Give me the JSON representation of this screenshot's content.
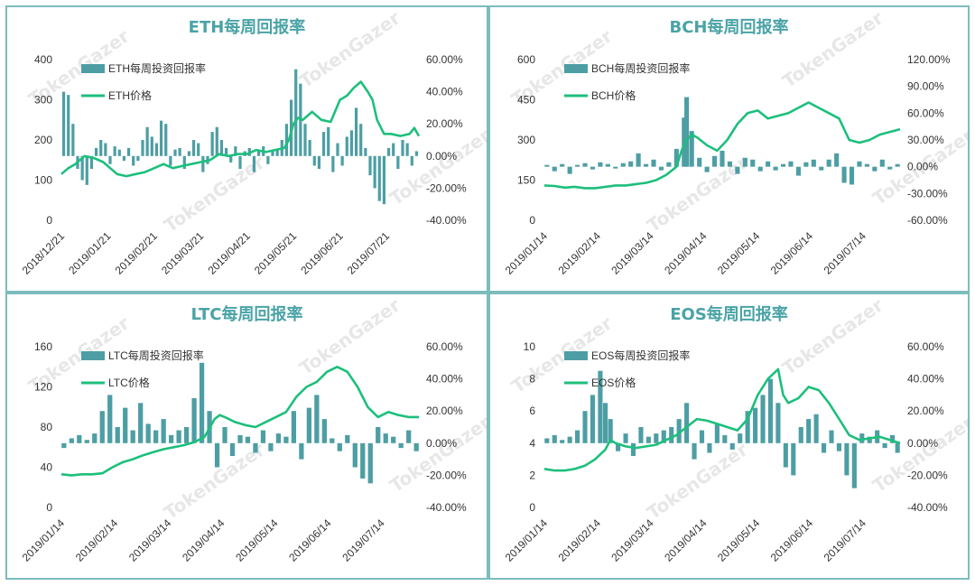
{
  "watermark": "TokenGazer",
  "colors": {
    "bar": "#4d9ea4",
    "line": "#1dbf7c",
    "title": "#4aa3a6",
    "border": "#7dbcbc"
  },
  "chart_data": [
    {
      "type": "bar+line",
      "title": "ETH每周回报率",
      "legend": [
        "ETH每周投资回报率",
        "ETH价格"
      ],
      "x_labels": [
        "2018/12/21",
        "2019/01/21",
        "2019/02/21",
        "2019/03/21",
        "2019/04/21",
        "2019/05/21",
        "2019/06/21",
        "2019/07/21"
      ],
      "x_range": [
        0,
        7.7
      ],
      "y_left_ticks": [
        "0",
        "100",
        "200",
        "300",
        "400"
      ],
      "y_left_range": [
        0,
        400
      ],
      "y_right_ticks": [
        "-40.00%",
        "-20.00%",
        "0.00%",
        "20.00%",
        "40.00%",
        "60.00%"
      ],
      "y_right_range": [
        -40,
        60
      ],
      "line_price": {
        "x": [
          0,
          0.15,
          0.3,
          0.5,
          0.7,
          0.9,
          1.0,
          1.2,
          1.4,
          1.6,
          1.8,
          2.0,
          2.2,
          2.4,
          2.6,
          2.8,
          3.0,
          3.2,
          3.4,
          3.6,
          3.8,
          4.0,
          4.2,
          4.4,
          4.6,
          4.8,
          4.9,
          5.0,
          5.1,
          5.2,
          5.4,
          5.6,
          5.8,
          6.0,
          6.15,
          6.3,
          6.45,
          6.6,
          6.7,
          6.8,
          6.95,
          7.1,
          7.3,
          7.5,
          7.6,
          7.7
        ],
        "y": [
          115,
          130,
          140,
          160,
          155,
          145,
          135,
          115,
          110,
          115,
          120,
          130,
          140,
          130,
          135,
          140,
          145,
          150,
          165,
          160,
          165,
          165,
          175,
          170,
          175,
          180,
          200,
          240,
          255,
          250,
          270,
          250,
          245,
          300,
          310,
          330,
          345,
          320,
          300,
          250,
          215,
          215,
          210,
          215,
          230,
          210
        ]
      },
      "bars_return_pct": {
        "x": [
          0.05,
          0.15,
          0.25,
          0.35,
          0.45,
          0.55,
          0.65,
          0.75,
          0.85,
          0.95,
          1.05,
          1.15,
          1.25,
          1.35,
          1.45,
          1.55,
          1.65,
          1.75,
          1.85,
          1.95,
          2.05,
          2.15,
          2.25,
          2.35,
          2.45,
          2.55,
          2.65,
          2.75,
          2.85,
          2.95,
          3.05,
          3.15,
          3.25,
          3.35,
          3.45,
          3.55,
          3.65,
          3.75,
          3.85,
          3.95,
          4.05,
          4.15,
          4.25,
          4.35,
          4.45,
          4.55,
          4.65,
          4.75,
          4.85,
          4.95,
          5.05,
          5.15,
          5.25,
          5.35,
          5.45,
          5.55,
          5.65,
          5.75,
          5.85,
          5.95,
          6.05,
          6.15,
          6.25,
          6.35,
          6.45,
          6.55,
          6.65,
          6.75,
          6.85,
          6.95,
          7.05,
          7.15,
          7.25,
          7.35,
          7.45,
          7.55,
          7.65
        ],
        "y": [
          40,
          38,
          20,
          -8,
          -15,
          -18,
          -8,
          5,
          10,
          8,
          -5,
          6,
          4,
          -3,
          5,
          -6,
          -3,
          10,
          18,
          12,
          8,
          22,
          20,
          -6,
          4,
          5,
          -8,
          3,
          10,
          8,
          -10,
          -5,
          15,
          18,
          10,
          5,
          -4,
          6,
          -8,
          3,
          5,
          -10,
          4,
          6,
          -5,
          3,
          4,
          10,
          20,
          35,
          54,
          45,
          20,
          10,
          -6,
          -8,
          15,
          18,
          -10,
          8,
          -6,
          12,
          16,
          30,
          20,
          5,
          -12,
          -20,
          -28,
          -30,
          5,
          8,
          -8,
          10,
          8,
          -6,
          3
        ]
      }
    },
    {
      "type": "bar+line",
      "title": "BCH每周回报率",
      "legend": [
        "BCH每周投资回报率",
        "BCH价格"
      ],
      "x_labels": [
        "2019/01/14",
        "2019/02/14",
        "2019/03/14",
        "2019/04/14",
        "2019/05/14",
        "2019/06/14",
        "2019/07/14"
      ],
      "x_range": [
        0,
        7.0
      ],
      "y_left_ticks": [
        "0",
        "150",
        "300",
        "450",
        "600"
      ],
      "y_left_range": [
        0,
        600
      ],
      "y_right_ticks": [
        "-60.00%",
        "-30.00%",
        "0.00%",
        "30.00%",
        "60.00%",
        "90.00%",
        "120.00%"
      ],
      "y_right_range": [
        -60,
        120
      ],
      "line_price": {
        "x": [
          0,
          0.2,
          0.4,
          0.6,
          0.8,
          1.0,
          1.2,
          1.4,
          1.6,
          1.8,
          2.0,
          2.2,
          2.4,
          2.6,
          2.7,
          2.8,
          2.9,
          3.0,
          3.2,
          3.4,
          3.6,
          3.8,
          4.0,
          4.2,
          4.4,
          4.6,
          4.8,
          5.0,
          5.2,
          5.4,
          5.6,
          5.8,
          6.0,
          6.2,
          6.4,
          6.6,
          6.8,
          7.0
        ],
        "y": [
          130,
          128,
          122,
          125,
          120,
          120,
          125,
          130,
          130,
          135,
          140,
          150,
          170,
          200,
          260,
          300,
          320,
          310,
          280,
          260,
          300,
          360,
          400,
          410,
          380,
          390,
          400,
          420,
          440,
          420,
          400,
          380,
          300,
          290,
          300,
          320,
          330,
          340
        ]
      },
      "bars_return_pct": {
        "x": [
          0.05,
          0.2,
          0.35,
          0.5,
          0.65,
          0.8,
          0.95,
          1.1,
          1.25,
          1.4,
          1.55,
          1.7,
          1.85,
          2.0,
          2.15,
          2.3,
          2.45,
          2.6,
          2.75,
          2.8,
          2.9,
          3.05,
          3.2,
          3.35,
          3.5,
          3.65,
          3.8,
          3.95,
          4.1,
          4.25,
          4.4,
          4.55,
          4.7,
          4.85,
          5.0,
          5.15,
          5.3,
          5.45,
          5.6,
          5.75,
          5.9,
          6.05,
          6.2,
          6.35,
          6.5,
          6.65,
          6.8,
          6.95
        ],
        "y": [
          2,
          -5,
          3,
          -8,
          2,
          4,
          -3,
          5,
          3,
          -2,
          4,
          6,
          15,
          3,
          8,
          -4,
          5,
          20,
          55,
          78,
          40,
          10,
          -6,
          12,
          18,
          6,
          -8,
          10,
          8,
          -5,
          6,
          -4,
          3,
          6,
          -10,
          5,
          8,
          -4,
          8,
          15,
          -18,
          -20,
          6,
          3,
          -5,
          8,
          -3,
          3
        ]
      }
    },
    {
      "type": "bar+line",
      "title": "LTC每周回报率",
      "legend": [
        "LTC每周投资回报率",
        "LTC价格"
      ],
      "x_labels": [
        "2019/01/14",
        "2019/02/14",
        "2019/03/14",
        "2019/04/14",
        "2019/05/14",
        "2019/06/14",
        "2019/07/14"
      ],
      "x_range": [
        0,
        7.0
      ],
      "y_left_ticks": [
        "0",
        "40",
        "80",
        "120",
        "160"
      ],
      "y_left_range": [
        0,
        160
      ],
      "y_right_ticks": [
        "-40.00%",
        "-20.00%",
        "0.00%",
        "20.00%",
        "40.00%",
        "60.00%"
      ],
      "y_right_range": [
        -40,
        60
      ],
      "line_price": {
        "x": [
          0,
          0.2,
          0.4,
          0.6,
          0.8,
          1.0,
          1.2,
          1.4,
          1.6,
          1.8,
          2.0,
          2.2,
          2.4,
          2.6,
          2.8,
          3.0,
          3.1,
          3.2,
          3.4,
          3.6,
          3.8,
          4.0,
          4.2,
          4.4,
          4.6,
          4.8,
          5.0,
          5.2,
          5.4,
          5.6,
          5.8,
          6.0,
          6.2,
          6.4,
          6.6,
          6.8,
          7.0
        ],
        "y": [
          33,
          32,
          33,
          33,
          34,
          40,
          45,
          48,
          52,
          55,
          58,
          60,
          62,
          65,
          70,
          88,
          92,
          90,
          85,
          82,
          80,
          85,
          90,
          95,
          110,
          120,
          125,
          135,
          140,
          135,
          120,
          100,
          90,
          95,
          92,
          90,
          90
        ]
      },
      "bars_return_pct": {
        "x": [
          0.05,
          0.2,
          0.35,
          0.5,
          0.65,
          0.8,
          0.95,
          1.1,
          1.25,
          1.4,
          1.55,
          1.7,
          1.85,
          2.0,
          2.15,
          2.3,
          2.45,
          2.6,
          2.75,
          2.9,
          3.05,
          3.2,
          3.35,
          3.5,
          3.65,
          3.8,
          3.95,
          4.1,
          4.25,
          4.4,
          4.55,
          4.7,
          4.85,
          5.0,
          5.15,
          5.3,
          5.45,
          5.6,
          5.75,
          5.9,
          6.05,
          6.2,
          6.35,
          6.5,
          6.65,
          6.8,
          6.95
        ],
        "y": [
          -3,
          3,
          5,
          2,
          6,
          20,
          30,
          10,
          22,
          8,
          25,
          12,
          8,
          15,
          5,
          8,
          10,
          28,
          50,
          20,
          -15,
          10,
          -8,
          5,
          4,
          -6,
          8,
          -5,
          6,
          4,
          20,
          -10,
          22,
          30,
          15,
          3,
          -5,
          5,
          -15,
          -22,
          -25,
          10,
          6,
          4,
          -3,
          8,
          -5
        ]
      }
    },
    {
      "type": "bar+line",
      "title": "EOS每周回报率",
      "legend": [
        "EOS每周投资回报率",
        "EOS价格"
      ],
      "x_labels": [
        "2019/01/14",
        "2019/02/14",
        "2019/03/14",
        "2019/04/14",
        "2019/05/14",
        "2019/06/14",
        "2019/07/14"
      ],
      "x_range": [
        0,
        7.0
      ],
      "y_left_ticks": [
        "0",
        "2",
        "4",
        "6",
        "8",
        "10"
      ],
      "y_left_range": [
        0,
        10
      ],
      "y_right_ticks": [
        "-40.00%",
        "-20.00%",
        "0.00%",
        "20.00%",
        "40.00%",
        "60.00%"
      ],
      "y_right_range": [
        -40,
        60
      ],
      "line_price": {
        "x": [
          0,
          0.2,
          0.4,
          0.6,
          0.8,
          1.0,
          1.2,
          1.3,
          1.4,
          1.6,
          1.8,
          2.0,
          2.2,
          2.4,
          2.6,
          2.8,
          3.0,
          3.2,
          3.4,
          3.6,
          3.8,
          4.0,
          4.2,
          4.4,
          4.6,
          4.7,
          4.8,
          5.0,
          5.2,
          5.4,
          5.6,
          5.8,
          6.0,
          6.2,
          6.4,
          6.6,
          6.8,
          7.0
        ],
        "y": [
          2.4,
          2.3,
          2.3,
          2.4,
          2.6,
          3.0,
          3.6,
          4.2,
          4.0,
          3.8,
          3.7,
          3.8,
          3.9,
          4.2,
          4.5,
          5.0,
          5.5,
          5.4,
          5.2,
          5.0,
          4.8,
          5.5,
          7.0,
          8.0,
          8.6,
          7.0,
          6.5,
          6.8,
          7.5,
          7.3,
          6.5,
          5.5,
          4.5,
          4.2,
          4.3,
          4.4,
          4.2,
          4.0
        ]
      },
      "bars_return_pct": {
        "x": [
          0.05,
          0.2,
          0.35,
          0.5,
          0.65,
          0.8,
          0.95,
          1.1,
          1.2,
          1.3,
          1.45,
          1.6,
          1.75,
          1.9,
          2.05,
          2.2,
          2.35,
          2.5,
          2.65,
          2.8,
          2.95,
          3.1,
          3.25,
          3.4,
          3.55,
          3.7,
          3.85,
          4.0,
          4.15,
          4.3,
          4.45,
          4.6,
          4.75,
          4.9,
          5.05,
          5.2,
          5.35,
          5.5,
          5.65,
          5.8,
          5.95,
          6.1,
          6.25,
          6.4,
          6.55,
          6.7,
          6.85,
          6.95
        ],
        "y": [
          3,
          5,
          2,
          4,
          8,
          20,
          30,
          45,
          25,
          15,
          -5,
          6,
          -8,
          10,
          4,
          6,
          8,
          10,
          15,
          25,
          -10,
          8,
          -6,
          12,
          5,
          -4,
          6,
          20,
          22,
          30,
          40,
          25,
          -15,
          -20,
          10,
          15,
          18,
          -6,
          8,
          -5,
          -20,
          -28,
          6,
          4,
          8,
          -3,
          5,
          -6
        ]
      }
    }
  ]
}
